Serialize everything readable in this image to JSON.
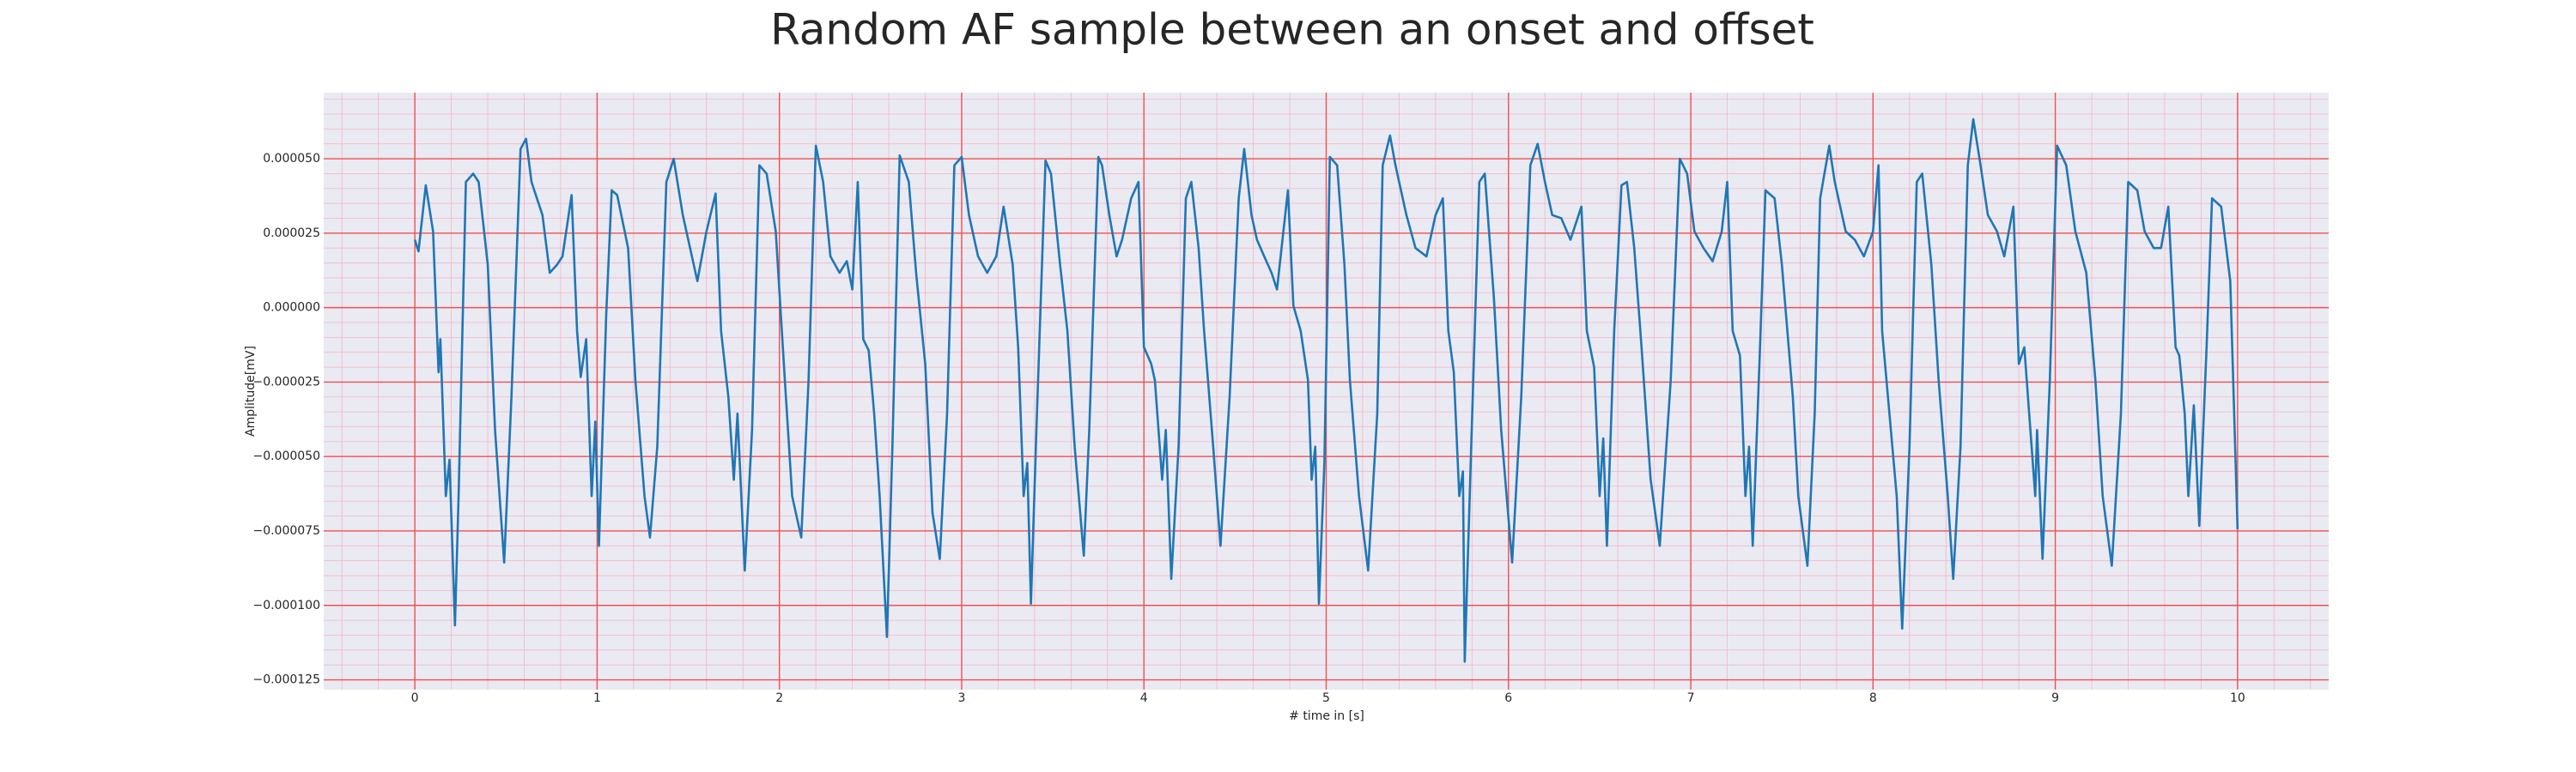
{
  "chart_data": {
    "type": "line",
    "title": "Random AF sample between an onset and offset",
    "xlabel": "# time in [s]",
    "ylabel": "Amplitude[mV]",
    "color": "#1f77b4",
    "grid": true,
    "minor_grid": true,
    "xlim": [
      -0.5,
      10.5
    ],
    "xticks": [
      0,
      1,
      2,
      3,
      4,
      5,
      6,
      7,
      8,
      9,
      10
    ],
    "ylim": [
      -0.0001283,
      7.22e-05
    ],
    "yticks": [
      {
        "value": -0.000125,
        "label": "−0.000125"
      },
      {
        "value": -0.0001,
        "label": "−0.000100"
      },
      {
        "value": -7.5e-05,
        "label": "−0.000075"
      },
      {
        "value": -5e-05,
        "label": "−0.000050"
      },
      {
        "value": -2.5e-05,
        "label": "−0.000025"
      },
      {
        "value": 0,
        "label": "0.000000"
      },
      {
        "value": 2.5e-05,
        "label": "0.000025"
      },
      {
        "value": 5e-05,
        "label": "0.000050"
      }
    ],
    "x": [
      0.0,
      0.02,
      0.06,
      0.1,
      0.13,
      0.14,
      0.17,
      0.19,
      0.22,
      0.24,
      0.28,
      0.32,
      0.35,
      0.4,
      0.44,
      0.49,
      0.53,
      0.58,
      0.61,
      0.64,
      0.7,
      0.74,
      0.78,
      0.81,
      0.86,
      0.89,
      0.91,
      0.94,
      0.97,
      0.99,
      1.01,
      1.05,
      1.08,
      1.11,
      1.17,
      1.21,
      1.26,
      1.29,
      1.33,
      1.38,
      1.42,
      1.47,
      1.51,
      1.55,
      1.6,
      1.65,
      1.68,
      1.72,
      1.75,
      1.77,
      1.81,
      1.85,
      1.89,
      1.93,
      1.98,
      2.03,
      2.07,
      2.12,
      2.16,
      2.2,
      2.24,
      2.28,
      2.33,
      2.37,
      2.4,
      2.43,
      2.46,
      2.49,
      2.52,
      2.55,
      2.59,
      2.62,
      2.66,
      2.71,
      2.75,
      2.8,
      2.84,
      2.88,
      2.92,
      2.96,
      3.0,
      3.04,
      3.09,
      3.14,
      3.19,
      3.23,
      3.28,
      3.31,
      3.34,
      3.36,
      3.38,
      3.41,
      3.46,
      3.49,
      3.54,
      3.58,
      3.62,
      3.67,
      3.7,
      3.75,
      3.77,
      3.81,
      3.85,
      3.88,
      3.93,
      3.97,
      4.0,
      4.04,
      4.06,
      4.1,
      4.12,
      4.15,
      4.19,
      4.23,
      4.26,
      4.3,
      4.33,
      4.38,
      4.42,
      4.47,
      4.52,
      4.55,
      4.59,
      4.62,
      4.66,
      4.7,
      4.73,
      4.79,
      4.82,
      4.86,
      4.9,
      4.92,
      4.94,
      4.96,
      4.99,
      5.02,
      5.06,
      5.1,
      5.13,
      5.18,
      5.23,
      5.28,
      5.31,
      5.35,
      5.38,
      5.44,
      5.49,
      5.55,
      5.6,
      5.64,
      5.67,
      5.7,
      5.73,
      5.75,
      5.76,
      5.79,
      5.84,
      5.87,
      5.92,
      5.96,
      6.02,
      6.07,
      6.12,
      6.16,
      6.2,
      6.24,
      6.29,
      6.34,
      6.4,
      6.43,
      6.47,
      6.5,
      6.52,
      6.54,
      6.58,
      6.62,
      6.65,
      6.69,
      6.73,
      6.78,
      6.83,
      6.89,
      6.94,
      6.98,
      7.02,
      7.07,
      7.12,
      7.17,
      7.2,
      7.23,
      7.27,
      7.3,
      7.32,
      7.34,
      7.38,
      7.41,
      7.46,
      7.5,
      7.56,
      7.59,
      7.64,
      7.68,
      7.71,
      7.76,
      7.79,
      7.85,
      7.9,
      7.95,
      8.0,
      8.03,
      8.05,
      8.09,
      8.13,
      8.16,
      8.2,
      8.24,
      8.27,
      8.32,
      8.36,
      8.41,
      8.44,
      8.48,
      8.52,
      8.55,
      8.59,
      8.63,
      8.68,
      8.72,
      8.77,
      8.8,
      8.83,
      8.89,
      8.9,
      8.93,
      8.97,
      9.01,
      9.06,
      9.11,
      9.17,
      9.22,
      9.26,
      9.31,
      9.36,
      9.4,
      9.45,
      9.49,
      9.54,
      9.58,
      9.62,
      9.66,
      9.68,
      9.71,
      9.73,
      9.76,
      9.79,
      9.83,
      9.86,
      9.91,
      9.96,
      10.0
    ],
    "values": [
      2.28e-05,
      1.89e-05,
      4.11e-05,
      2.56e-05,
      -2.17e-05,
      -1.06e-05,
      -6.33e-05,
      -5.11e-05,
      -0.0001067,
      -6.33e-05,
      4.22e-05,
      4.5e-05,
      4.22e-05,
      1.44e-05,
      -4.11e-05,
      -8.56e-05,
      -3e-05,
      5.33e-05,
      5.67e-05,
      4.22e-05,
      3.11e-05,
      1.17e-05,
      1.44e-05,
      1.72e-05,
      3.78e-05,
      -7.8e-06,
      -2.33e-05,
      -1.06e-05,
      -6.33e-05,
      -3.83e-05,
      -8e-05,
      -2.2e-06,
      3.94e-05,
      3.78e-05,
      2e-05,
      -2.44e-05,
      -6.33e-05,
      -7.72e-05,
      -4.67e-05,
      4.22e-05,
      5e-05,
      3.11e-05,
      2e-05,
      8.9e-06,
      2.56e-05,
      3.83e-05,
      -7.8e-06,
      -3e-05,
      -5.78e-05,
      -3.56e-05,
      -8.83e-05,
      -4.11e-05,
      4.78e-05,
      4.5e-05,
      2.56e-05,
      -2.44e-05,
      -6.33e-05,
      -7.72e-05,
      -2.44e-05,
      5.44e-05,
      4.22e-05,
      1.72e-05,
      1.17e-05,
      1.56e-05,
      6.1e-06,
      4.22e-05,
      -1.06e-05,
      -1.44e-05,
      -3.56e-05,
      -6.33e-05,
      -0.0001106,
      -4.67e-05,
      5.11e-05,
      4.22e-05,
      1.17e-05,
      -1.89e-05,
      -6.89e-05,
      -8.44e-05,
      -3.56e-05,
      4.78e-05,
      5.06e-05,
      3.11e-05,
      1.72e-05,
      1.17e-05,
      1.72e-05,
      3.39e-05,
      1.44e-05,
      -1.33e-05,
      -6.33e-05,
      -5.22e-05,
      -9.94e-05,
      -4.11e-05,
      4.94e-05,
      4.5e-05,
      1.44e-05,
      -7.8e-06,
      -4.67e-05,
      -8.33e-05,
      -4.11e-05,
      5.06e-05,
      4.78e-05,
      3.11e-05,
      1.72e-05,
      2.28e-05,
      3.67e-05,
      4.22e-05,
      -1.33e-05,
      -1.89e-05,
      -2.44e-05,
      -5.78e-05,
      -4.11e-05,
      -9.11e-05,
      -4.67e-05,
      3.67e-05,
      4.22e-05,
      2e-05,
      -7.8e-06,
      -4.67e-05,
      -8e-05,
      -3e-05,
      3.67e-05,
      5.33e-05,
      3.11e-05,
      2.28e-05,
      1.72e-05,
      1.17e-05,
      6.1e-06,
      3.94e-05,
      6e-07,
      -7.8e-06,
      -2.44e-05,
      -5.78e-05,
      -4.67e-05,
      -9.94e-05,
      -5.22e-05,
      5.06e-05,
      4.78e-05,
      1.44e-05,
      -2.44e-05,
      -6.33e-05,
      -8.83e-05,
      -3.56e-05,
      4.78e-05,
      5.78e-05,
      4.78e-05,
      3.11e-05,
      2e-05,
      1.72e-05,
      3.11e-05,
      3.67e-05,
      -7.8e-06,
      -2.17e-05,
      -6.33e-05,
      -5.5e-05,
      -0.0001189,
      -5.78e-05,
      4.22e-05,
      4.5e-05,
      3.3e-06,
      -4.11e-05,
      -8.56e-05,
      -3e-05,
      4.78e-05,
      5.5e-05,
      4.22e-05,
      3.11e-05,
      3e-05,
      2.28e-05,
      3.39e-05,
      -7.8e-06,
      -2e-05,
      -6.33e-05,
      -4.39e-05,
      -8e-05,
      -7.8e-06,
      4.11e-05,
      4.22e-05,
      2e-05,
      -1.33e-05,
      -5.78e-05,
      -8e-05,
      -2.44e-05,
      5e-05,
      4.5e-05,
      2.56e-05,
      2e-05,
      1.56e-05,
      2.56e-05,
      4.22e-05,
      -7.8e-06,
      -1.61e-05,
      -6.33e-05,
      -4.67e-05,
      -8e-05,
      -1.33e-05,
      3.94e-05,
      3.67e-05,
      1.44e-05,
      -3e-05,
      -6.33e-05,
      -8.67e-05,
      -3.56e-05,
      3.67e-05,
      5.44e-05,
      4.22e-05,
      2.56e-05,
      2.28e-05,
      1.72e-05,
      2.56e-05,
      4.78e-05,
      -7.8e-06,
      -3.56e-05,
      -6.33e-05,
      -0.0001078,
      -4.67e-05,
      4.22e-05,
      4.5e-05,
      1.44e-05,
      -2.44e-05,
      -6.33e-05,
      -9.11e-05,
      -4.67e-05,
      4.78e-05,
      6.33e-05,
      4.78e-05,
      3.11e-05,
      2.56e-05,
      1.72e-05,
      3.39e-05,
      -1.89e-05,
      -1.33e-05,
      -6.33e-05,
      -4.11e-05,
      -8.44e-05,
      -2.44e-05,
      5.44e-05,
      4.78e-05,
      2.56e-05,
      1.17e-05,
      -2.44e-05,
      -6.33e-05,
      -8.67e-05,
      -3.56e-05,
      4.22e-05,
      3.94e-05,
      2.56e-05,
      2e-05,
      2e-05,
      3.39e-05,
      -1.33e-05,
      -1.61e-05,
      -3.56e-05,
      -6.33e-05,
      -3.28e-05,
      -7.33e-05,
      -1.33e-05,
      3.67e-05,
      3.39e-05,
      8.9e-06,
      -7.44e-05
    ]
  }
}
